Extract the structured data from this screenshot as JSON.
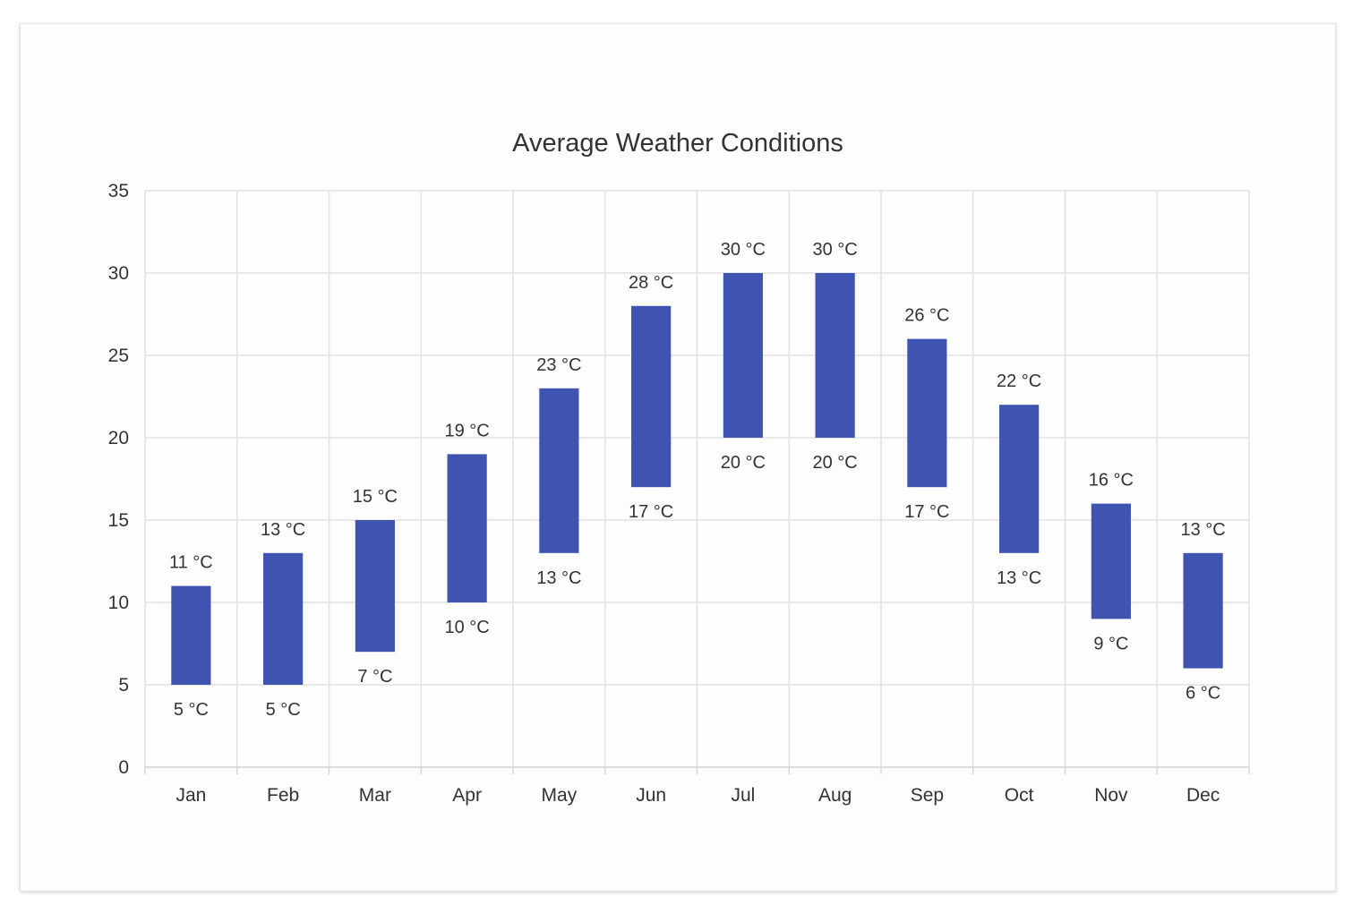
{
  "chart_data": {
    "type": "bar",
    "subtype": "range-column",
    "title": "Average Weather Conditions",
    "xlabel": "",
    "ylabel": "",
    "categories": [
      "Jan",
      "Feb",
      "Mar",
      "Apr",
      "May",
      "Jun",
      "Jul",
      "Aug",
      "Sep",
      "Oct",
      "Nov",
      "Dec"
    ],
    "series": [
      {
        "low": [
          5,
          5,
          7,
          10,
          13,
          17,
          20,
          20,
          17,
          13,
          9,
          6
        ],
        "high": [
          11,
          13,
          15,
          19,
          23,
          28,
          30,
          30,
          26,
          22,
          16,
          13
        ]
      }
    ],
    "value_suffix": " °C",
    "ylim": [
      0,
      35
    ],
    "yticks": [
      0,
      5,
      10,
      15,
      20,
      25,
      30,
      35
    ],
    "grid": true,
    "legend": "none",
    "bar_color": "#3f54b0"
  }
}
